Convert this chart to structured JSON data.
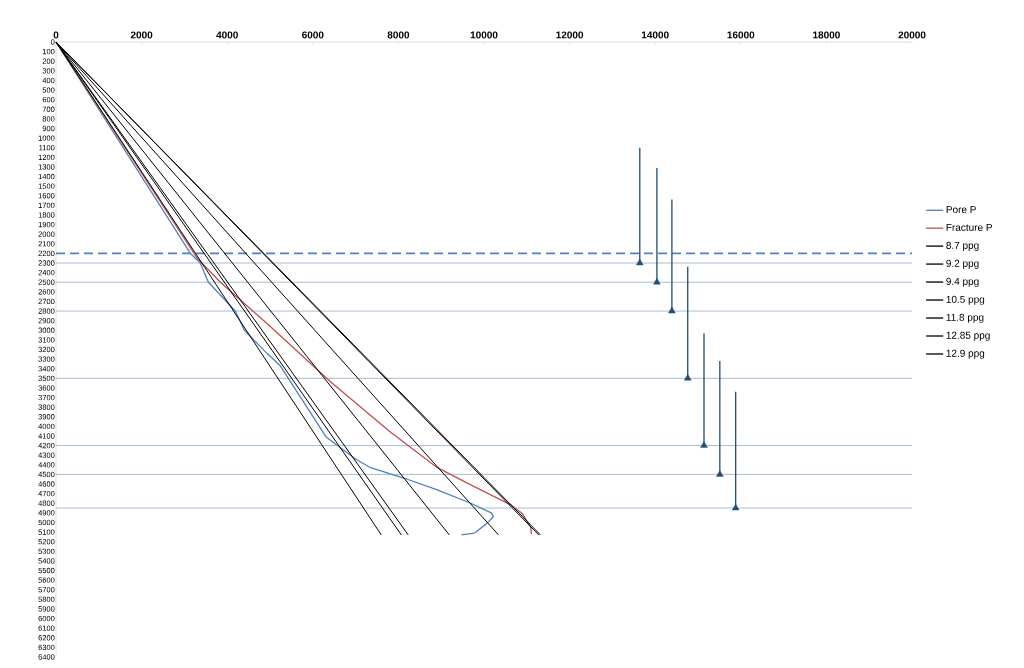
{
  "chart_data": {
    "type": "line",
    "xlim": [
      0,
      20000
    ],
    "ylim": [
      6400,
      0
    ],
    "xticks": [
      0,
      2000,
      4000,
      6000,
      8000,
      10000,
      12000,
      14000,
      16000,
      18000,
      20000
    ],
    "yticks": [
      0,
      100,
      200,
      300,
      400,
      500,
      600,
      700,
      800,
      900,
      1000,
      1100,
      1200,
      1300,
      1400,
      1500,
      1600,
      1700,
      1800,
      1900,
      2000,
      2100,
      2200,
      2300,
      2400,
      2500,
      2600,
      2700,
      2800,
      2900,
      3000,
      3100,
      3200,
      3300,
      3400,
      3500,
      3600,
      3700,
      3800,
      3900,
      4000,
      4100,
      4200,
      4300,
      4400,
      4500,
      4600,
      4700,
      4800,
      4900,
      5000,
      5100,
      5200,
      5300,
      5400,
      5500,
      5600,
      5700,
      5800,
      5900,
      6000,
      6100,
      6200,
      6300,
      6400
    ],
    "grid": false,
    "legend": "right",
    "marker": "none",
    "line_style": "solid",
    "series": [
      {
        "name": "Pore P",
        "color": "#4f81bd",
        "x": [
          0,
          3140,
          3370,
          3560,
          4190,
          4400,
          4930,
          5240,
          6310,
          7000,
          7350,
          8140,
          8910,
          9690,
          10170,
          10220,
          10040,
          9780,
          9470
        ],
        "values": [
          0,
          2200,
          2300,
          2500,
          2800,
          3000,
          3240,
          3370,
          4110,
          4340,
          4430,
          4540,
          4660,
          4800,
          4900,
          4940,
          5020,
          5110,
          5130
        ]
      },
      {
        "name": "Fracture P",
        "color": "#c0504d",
        "x": [
          0,
          3300,
          3840,
          4600,
          4930,
          6400,
          7790,
          8910,
          9610,
          10640,
          10900,
          11090,
          11110
        ],
        "values": [
          0,
          2250,
          2500,
          2800,
          2930,
          3530,
          4050,
          4430,
          4590,
          4820,
          4910,
          5050,
          5120
        ]
      },
      {
        "name": "8.7 ppg",
        "color": "#000000",
        "x": [
          0,
          7600
        ],
        "values": [
          0,
          5130
        ]
      },
      {
        "name": "9.2 ppg",
        "color": "#000000",
        "x": [
          0,
          8070
        ],
        "values": [
          0,
          5130
        ]
      },
      {
        "name": "9.4 ppg",
        "color": "#000000",
        "x": [
          0,
          8230
        ],
        "values": [
          0,
          5130
        ]
      },
      {
        "name": "10.5 ppg",
        "color": "#000000",
        "x": [
          0,
          9190
        ],
        "values": [
          0,
          5130
        ]
      },
      {
        "name": "11.8 ppg",
        "color": "#000000",
        "x": [
          0,
          10340
        ],
        "values": [
          0,
          5130
        ]
      },
      {
        "name": "12.85 ppg",
        "color": "#000000",
        "x": [
          0,
          11280
        ],
        "values": [
          0,
          5130
        ]
      },
      {
        "name": "12.9 ppg",
        "color": "#000000",
        "x": [
          0,
          11320
        ],
        "values": [
          0,
          5130
        ]
      },
      {
        "color": "#1f4e79",
        "x": [
          13640,
          13640,
          null,
          14040,
          14040,
          null,
          14390,
          14390,
          null,
          14760,
          14760,
          null,
          15140,
          15140,
          null,
          15510,
          15510,
          null,
          15880,
          15880
        ],
        "values": [
          1100,
          2300,
          null,
          1310,
          2500,
          null,
          1640,
          2800,
          null,
          2340,
          3500,
          null,
          3030,
          4200,
          null,
          3320,
          4500,
          null,
          3640,
          4850
        ]
      },
      {
        "type": "scatter",
        "marker": "triangle",
        "color": "#1f4e79",
        "x": [
          13640,
          14040,
          14390,
          14760,
          15140,
          15510,
          15880
        ],
        "values": [
          2300,
          2500,
          2800,
          3500,
          4200,
          4500,
          4850
        ]
      }
    ],
    "ref_lines": [
      {
        "axis": "y",
        "value": 2200,
        "color": "#4f81bd",
        "line_style": "dashed"
      },
      {
        "axis": "y",
        "value": 2300,
        "color": "#8eacc8"
      },
      {
        "axis": "y",
        "value": 2500,
        "color": "#8eacc8"
      },
      {
        "axis": "y",
        "value": 2800,
        "color": "#8eacc8"
      },
      {
        "axis": "y",
        "value": 3500,
        "color": "#8eacc8"
      },
      {
        "axis": "y",
        "value": 4200,
        "color": "#8eacc8"
      },
      {
        "axis": "y",
        "value": 4500,
        "color": "#8eacc8"
      },
      {
        "axis": "y",
        "value": 4850,
        "color": "#8eacc8"
      }
    ]
  }
}
